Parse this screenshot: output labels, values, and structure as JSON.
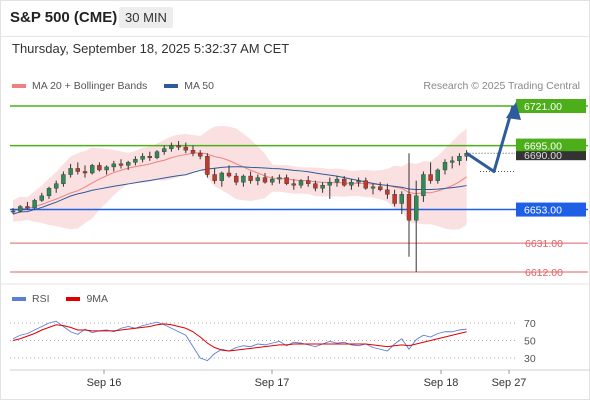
{
  "header": {
    "title": "S&P 500 (CME)",
    "timeframe": "30 MIN",
    "datetime": "Thursday, September 18, 2025 5:32:37 AM CET"
  },
  "legend": {
    "bollinger_label": "MA 20 + Bollinger Bands",
    "ma50_label": "MA 50",
    "credit": "Research © 2025 Trading Central",
    "bollinger_color": "#f08080",
    "ma50_color": "#2e5b9a"
  },
  "rsi_legend": {
    "rsi_label": "RSI",
    "ma_label": "9MA",
    "rsi_color": "#5b7fd6",
    "ma_color": "#e00000"
  },
  "colors": {
    "resistance": "#4caf1a",
    "pivot": "#1f5fe6",
    "support": "#e06060",
    "arrow": "#2e5b9a",
    "bull": "#2e8b57",
    "bear": "#c0392b",
    "band": "#f6c6c6"
  },
  "chart_data": [
    {
      "type": "candlestick",
      "instrument": "S&P 500 (CME)",
      "interval": "30 MIN",
      "price_unit": "index points",
      "current_price": "6690.00",
      "levels": [
        {
          "label": "6721.00",
          "value": 6721.0,
          "kind": "resistance"
        },
        {
          "label": "6695.00",
          "value": 6695.0,
          "kind": "resistance"
        },
        {
          "label": "6653.00",
          "value": 6653.0,
          "kind": "pivot"
        },
        {
          "label": "6631.00",
          "value": 6631.0,
          "kind": "support"
        },
        {
          "label": "6612.00",
          "value": 6612.0,
          "kind": "support"
        }
      ],
      "x_ticks": [
        "Sep 16",
        "Sep 17",
        "Sep 18",
        "Sep 27"
      ],
      "candles": [
        [
          6652,
          6654,
          6650,
          6652
        ],
        [
          6652,
          6656,
          6651,
          6655
        ],
        [
          6655,
          6658,
          6653,
          6654
        ],
        [
          6654,
          6660,
          6653,
          6659
        ],
        [
          6659,
          6664,
          6658,
          6662
        ],
        [
          6662,
          6668,
          6660,
          6667
        ],
        [
          6667,
          6672,
          6664,
          6670
        ],
        [
          6670,
          6678,
          6668,
          6676
        ],
        [
          6676,
          6683,
          6674,
          6680
        ],
        [
          6680,
          6684,
          6676,
          6678
        ],
        [
          6678,
          6682,
          6674,
          6677
        ],
        [
          6677,
          6683,
          6676,
          6682
        ],
        [
          6682,
          6684,
          6678,
          6679
        ],
        [
          6679,
          6682,
          6676,
          6681
        ],
        [
          6681,
          6685,
          6678,
          6683
        ],
        [
          6683,
          6686,
          6680,
          6682
        ],
        [
          6682,
          6685,
          6679,
          6684
        ],
        [
          6684,
          6688,
          6682,
          6686
        ],
        [
          6686,
          6690,
          6684,
          6688
        ],
        [
          6688,
          6691,
          6685,
          6687
        ],
        [
          6687,
          6692,
          6686,
          6691
        ],
        [
          6691,
          6695,
          6689,
          6693
        ],
        [
          6693,
          6697,
          6691,
          6695
        ],
        [
          6695,
          6698,
          6692,
          6694
        ],
        [
          6694,
          6697,
          6690,
          6692
        ],
        [
          6692,
          6695,
          6688,
          6690
        ],
        [
          6690,
          6692,
          6686,
          6688
        ],
        [
          6688,
          6690,
          6674,
          6676
        ],
        [
          6676,
          6680,
          6670,
          6672
        ],
        [
          6672,
          6678,
          6668,
          6677
        ],
        [
          6677,
          6682,
          6674,
          6675
        ],
        [
          6675,
          6677,
          6669,
          6671
        ],
        [
          6671,
          6676,
          6668,
          6675
        ],
        [
          6675,
          6678,
          6670,
          6672
        ],
        [
          6672,
          6676,
          6669,
          6674
        ],
        [
          6674,
          6677,
          6670,
          6671
        ],
        [
          6671,
          6675,
          6669,
          6673
        ],
        [
          6673,
          6676,
          6670,
          6674
        ],
        [
          6674,
          6676,
          6669,
          6670
        ],
        [
          6670,
          6673,
          6666,
          6669
        ],
        [
          6669,
          6673,
          6667,
          6672
        ],
        [
          6672,
          6675,
          6668,
          6670
        ],
        [
          6670,
          6672,
          6665,
          6667
        ],
        [
          6667,
          6671,
          6664,
          6669
        ],
        [
          6669,
          6674,
          6660,
          6671
        ],
        [
          6671,
          6675,
          6668,
          6673
        ],
        [
          6673,
          6675,
          6668,
          6669
        ],
        [
          6669,
          6673,
          6666,
          6671
        ],
        [
          6671,
          6674,
          6668,
          6672
        ],
        [
          6672,
          6674,
          6666,
          6667
        ],
        [
          6667,
          6670,
          6663,
          6668
        ],
        [
          6668,
          6671,
          6665,
          6666
        ],
        [
          6666,
          6670,
          6660,
          6663
        ],
        [
          6663,
          6666,
          6655,
          6657
        ],
        [
          6657,
          6665,
          6650,
          6663
        ],
        [
          6663,
          6690,
          6622,
          6646
        ],
        [
          6646,
          6672,
          6612,
          6662
        ],
        [
          6662,
          6678,
          6658,
          6676
        ],
        [
          6676,
          6684,
          6670,
          6672
        ],
        [
          6672,
          6680,
          6670,
          6679
        ],
        [
          6679,
          6686,
          6676,
          6684
        ],
        [
          6684,
          6688,
          6680,
          6685
        ],
        [
          6685,
          6690,
          6682,
          6688
        ],
        [
          6688,
          6692,
          6685,
          6690
        ]
      ],
      "projection": [
        6690,
        6678,
        6721
      ]
    },
    {
      "type": "line",
      "title": "RSI",
      "y_ticks": [
        70,
        50,
        30
      ],
      "ylim": [
        20,
        80
      ],
      "series": [
        {
          "name": "RSI",
          "values": [
            52,
            56,
            58,
            62,
            66,
            70,
            72,
            66,
            60,
            57,
            63,
            59,
            61,
            62,
            60,
            64,
            66,
            64,
            67,
            69,
            71,
            68,
            64,
            60,
            56,
            43,
            30,
            27,
            35,
            40,
            38,
            42,
            44,
            43,
            46,
            45,
            47,
            49,
            44,
            48,
            47,
            45,
            43,
            46,
            49,
            47,
            48,
            45,
            44,
            46,
            42,
            40,
            38,
            46,
            52,
            40,
            51,
            56,
            54,
            58,
            60,
            60,
            62,
            63
          ]
        },
        {
          "name": "9MA",
          "values": [
            50,
            52,
            55,
            58,
            62,
            65,
            68,
            67,
            65,
            62,
            62,
            61,
            61,
            61,
            61,
            62,
            63,
            64,
            65,
            66,
            68,
            69,
            68,
            66,
            64,
            60,
            54,
            47,
            42,
            39,
            38,
            39,
            40,
            41,
            42,
            43,
            44,
            45,
            45,
            46,
            46,
            46,
            46,
            46,
            46,
            46,
            46,
            46,
            46,
            46,
            45,
            44,
            43,
            44,
            45,
            44,
            46,
            48,
            50,
            52,
            54,
            56,
            58,
            60
          ]
        }
      ]
    }
  ]
}
